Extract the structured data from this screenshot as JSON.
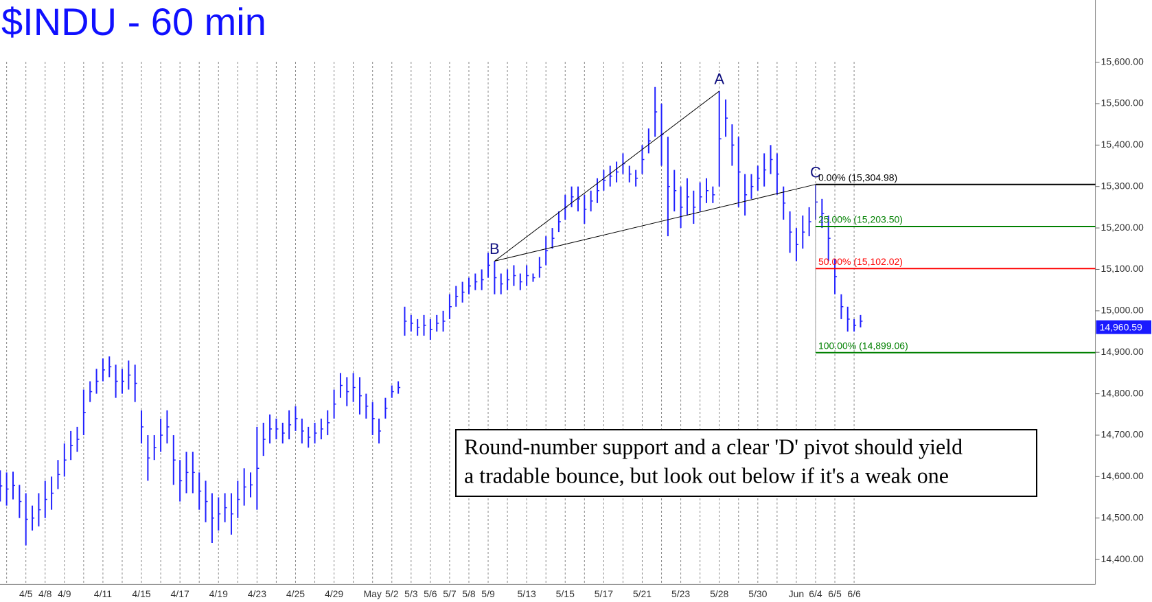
{
  "chart_data": {
    "type": "ohlc",
    "title": "$INDU - 60 min",
    "color": "#2020ff",
    "categories": [
      null,
      "4/5",
      "4/8",
      "4/9",
      null,
      "4/11",
      null,
      "4/15",
      null,
      "4/17",
      null,
      "4/19",
      null,
      "4/23",
      null,
      "4/25",
      null,
      "4/29",
      null,
      "May",
      "5/2",
      "5/3",
      "5/6",
      "5/7",
      "5/8",
      "5/9",
      null,
      "5/13",
      null,
      "5/15",
      null,
      "5/17",
      null,
      "5/21",
      null,
      "5/23",
      null,
      "5/28",
      null,
      "5/30",
      null,
      "Jun",
      "6/4",
      "6/5",
      "6/6"
    ],
    "high": [
      [
        14615,
        14610,
        14612
      ],
      [
        14580,
        14560,
        14530
      ],
      [
        14560,
        14590,
        14600
      ],
      [
        14640,
        14680,
        14710
      ],
      [
        14720,
        14810,
        14830
      ],
      [
        14860,
        14885,
        14890
      ],
      [
        14870,
        14860,
        14880
      ],
      [
        14870,
        14760,
        14700
      ],
      [
        14700,
        14740,
        14760
      ],
      [
        14700,
        14640,
        14660
      ],
      [
        14660,
        14610,
        14590
      ],
      [
        14560,
        14550,
        14560
      ],
      [
        14560,
        14590,
        14620
      ],
      [
        14610,
        14720,
        14730
      ],
      [
        14750,
        14740,
        14730
      ],
      [
        14760,
        14770,
        14740
      ],
      [
        14720,
        14730,
        14740
      ],
      [
        14760,
        14810,
        14850
      ],
      [
        14840,
        14850,
        14840
      ],
      [
        14800,
        14780,
        14740
      ],
      [
        14790,
        14820,
        14830
      ],
      [
        15010,
        14990,
        14980
      ],
      [
        14990,
        14980,
        14990
      ],
      [
        15000,
        15040,
        15060
      ],
      [
        15070,
        15080,
        15090
      ],
      [
        15100,
        15140,
        15120
      ],
      [
        15090,
        15100,
        15110
      ],
      [
        15090,
        15110,
        15090
      ],
      [
        15130,
        15180,
        15200
      ],
      [
        15240,
        15280,
        15300
      ],
      [
        15300,
        15280,
        15290
      ],
      [
        15320,
        15340,
        15350
      ],
      [
        15360,
        15380,
        15350
      ],
      [
        15340,
        15400,
        15440
      ],
      [
        15540,
        15500,
        15420
      ],
      [
        15340,
        15300,
        15320
      ],
      [
        15290,
        15310,
        15320
      ],
      [
        15300,
        15530,
        15510
      ],
      [
        15450,
        15420,
        15330
      ],
      [
        15330,
        15350,
        15380
      ],
      [
        15400,
        15380,
        15300
      ],
      [
        15240,
        15200,
        15230
      ],
      [
        15250,
        15305,
        15270
      ],
      [
        15230,
        15125,
        15040
      ],
      [
        15010,
        14980,
        14990
      ]
    ],
    "low": [
      [
        14540,
        14530,
        14545
      ],
      [
        14500,
        14434,
        14470
      ],
      [
        14480,
        14500,
        14520
      ],
      [
        14570,
        14600,
        14640
      ],
      [
        14660,
        14700,
        14780
      ],
      [
        14800,
        14830,
        14840
      ],
      [
        14790,
        14800,
        14810
      ],
      [
        14780,
        14680,
        14590
      ],
      [
        14640,
        14660,
        14680
      ],
      [
        14580,
        14540,
        14560
      ],
      [
        14560,
        14520,
        14490
      ],
      [
        14440,
        14470,
        14490
      ],
      [
        14460,
        14500,
        14530
      ],
      [
        14550,
        14520,
        14650
      ],
      [
        14680,
        14690,
        14680
      ],
      [
        14690,
        14710,
        14680
      ],
      [
        14670,
        14680,
        14690
      ],
      [
        14700,
        14740,
        14790
      ],
      [
        14770,
        14780,
        14750
      ],
      [
        14740,
        14700,
        14680
      ],
      [
        14740,
        14790,
        14800
      ],
      [
        14940,
        14950,
        14940
      ],
      [
        14940,
        14930,
        14950
      ],
      [
        14950,
        14980,
        15010
      ],
      [
        15020,
        15040,
        15050
      ],
      [
        15050,
        15080,
        15040
      ],
      [
        15040,
        15050,
        15060
      ],
      [
        15050,
        15060,
        15070
      ],
      [
        15080,
        15110,
        15150
      ],
      [
        15190,
        15220,
        15250
      ],
      [
        15240,
        15210,
        15240
      ],
      [
        15260,
        15290,
        15300
      ],
      [
        15310,
        15330,
        15310
      ],
      [
        15300,
        15330,
        15380
      ],
      [
        15420,
        15350,
        15180
      ],
      [
        15240,
        15200,
        15230
      ],
      [
        15210,
        15240,
        15260
      ],
      [
        15260,
        15300,
        15420
      ],
      [
        15350,
        15250,
        15230
      ],
      [
        15270,
        15290,
        15300
      ],
      [
        15330,
        15280,
        15220
      ],
      [
        15140,
        15120,
        15150
      ],
      [
        15180,
        15220,
        15200
      ],
      [
        15120,
        15040,
        14980
      ],
      [
        14950,
        14950,
        14960
      ]
    ],
    "ylim": [
      14340,
      15750
    ],
    "yticks": [
      {
        "value": 14400,
        "label": "14,400.00"
      },
      {
        "value": 14500,
        "label": "14,500.00"
      },
      {
        "value": 14600,
        "label": "14,600.00"
      },
      {
        "value": 14700,
        "label": "14,700.00"
      },
      {
        "value": 14800,
        "label": "14,800.00"
      },
      {
        "value": 14900,
        "label": "14,900.00"
      },
      {
        "value": 15000,
        "label": "15,000.00"
      },
      {
        "value": 15100,
        "label": "15,100.00"
      },
      {
        "value": 15200,
        "label": "15,200.00"
      },
      {
        "value": 15300,
        "label": "15,300.00"
      },
      {
        "value": 15400,
        "label": "15,400.00"
      },
      {
        "value": 15500,
        "label": "15,500.00"
      },
      {
        "value": 15600,
        "label": "15,600.00"
      }
    ],
    "last": {
      "value": 14960.59,
      "label": "14,960.59"
    },
    "pivots": [
      {
        "label": "A",
        "value": 15530
      },
      {
        "label": "B",
        "value": 15120
      },
      {
        "label": "C",
        "value": 15305
      }
    ],
    "fib_levels": [
      {
        "label": "0.00% (15,304.98)",
        "value": 15304.98,
        "color": "#000000"
      },
      {
        "label": "25.00% (15,203.50)",
        "value": 15203.5,
        "color": "#008000"
      },
      {
        "label": "50.00% (15,102.02)",
        "value": 15102.02,
        "color": "#ff0000"
      },
      {
        "label": "100.00% (14,899.06)",
        "value": 14899.06,
        "color": "#008000"
      }
    ],
    "annotation": [
      "Round-number support and a clear 'D' pivot should yield",
      "a tradable bounce, but look out below if it's a weak one"
    ]
  }
}
